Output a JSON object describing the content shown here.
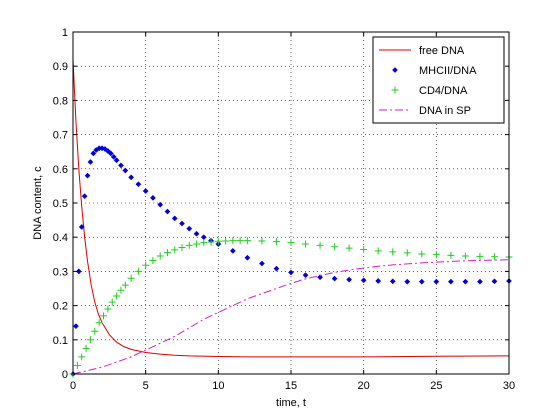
{
  "chart_data": {
    "type": "line",
    "title": "",
    "xlabel": "time, t",
    "ylabel": "DNA content, c",
    "xlim": [
      0,
      30
    ],
    "ylim": [
      0,
      1
    ],
    "xticks": [
      0,
      5,
      10,
      15,
      20,
      25,
      30
    ],
    "yticks": [
      0,
      0.1,
      0.2,
      0.3,
      0.4,
      0.5,
      0.6,
      0.7,
      0.8,
      0.9,
      1
    ],
    "xtick_labels": [
      "0",
      "5",
      "10",
      "15",
      "20",
      "25",
      "30"
    ],
    "ytick_labels": [
      "0",
      "0.1",
      "0.2",
      "0.3",
      "0.4",
      "0.5",
      "0.6",
      "0.7",
      "0.8",
      "0.9",
      "1"
    ],
    "grid": true,
    "legend_position": "top-right",
    "series": [
      {
        "name": "free DNA",
        "style": "solid",
        "marker": "none",
        "color": "#dd0000",
        "x": [
          0,
          0.2,
          0.4,
          0.6,
          0.8,
          1.0,
          1.25,
          1.5,
          1.75,
          2.0,
          2.5,
          3.0,
          3.5,
          4.0,
          5,
          6,
          7,
          8,
          10,
          12,
          15,
          20,
          25,
          30
        ],
        "y": [
          0.92,
          0.74,
          0.6,
          0.49,
          0.4,
          0.33,
          0.26,
          0.21,
          0.175,
          0.15,
          0.115,
          0.093,
          0.08,
          0.072,
          0.063,
          0.058,
          0.055,
          0.053,
          0.051,
          0.05,
          0.05,
          0.05,
          0.052,
          0.053
        ]
      },
      {
        "name": "MHCII/DNA",
        "style": "none",
        "marker": "diamond",
        "color": "#0000dd",
        "x": [
          0,
          0.2,
          0.4,
          0.6,
          0.8,
          1.0,
          1.2,
          1.4,
          1.6,
          1.8,
          2.0,
          2.2,
          2.4,
          2.6,
          2.8,
          3.0,
          3.3,
          3.6,
          4.0,
          4.5,
          5.0,
          5.5,
          6.0,
          6.5,
          7.0,
          7.5,
          8.0,
          8.5,
          9.0,
          9.5,
          10.0,
          11,
          12,
          13,
          14,
          15,
          16,
          17,
          18,
          19,
          20,
          21,
          22,
          23,
          24,
          25,
          26,
          27,
          28,
          29,
          30
        ],
        "y": [
          0.0,
          0.14,
          0.3,
          0.43,
          0.52,
          0.58,
          0.62,
          0.645,
          0.655,
          0.66,
          0.66,
          0.658,
          0.652,
          0.645,
          0.635,
          0.625,
          0.61,
          0.595,
          0.575,
          0.555,
          0.535,
          0.515,
          0.495,
          0.475,
          0.455,
          0.44,
          0.425,
          0.41,
          0.4,
          0.39,
          0.38,
          0.36,
          0.34,
          0.323,
          0.308,
          0.297,
          0.289,
          0.283,
          0.279,
          0.276,
          0.274,
          0.272,
          0.271,
          0.27,
          0.27,
          0.27,
          0.27,
          0.27,
          0.27,
          0.271,
          0.272
        ]
      },
      {
        "name": "CD4/DNA",
        "style": "none",
        "marker": "plus",
        "color": "#22cc22",
        "x": [
          0,
          0.3,
          0.6,
          0.9,
          1.2,
          1.5,
          1.8,
          2.1,
          2.4,
          2.7,
          3.0,
          3.3,
          3.6,
          4.0,
          4.5,
          5.0,
          5.5,
          6.0,
          6.5,
          7.0,
          7.5,
          8.0,
          8.5,
          9.0,
          9.5,
          10.0,
          10.5,
          11,
          11.5,
          12,
          13,
          14,
          15,
          16,
          17,
          18,
          19,
          20,
          21,
          22,
          23,
          24,
          25,
          26,
          27,
          28,
          29,
          30
        ],
        "y": [
          0.0,
          0.025,
          0.05,
          0.075,
          0.1,
          0.125,
          0.15,
          0.17,
          0.19,
          0.21,
          0.228,
          0.245,
          0.26,
          0.28,
          0.3,
          0.318,
          0.332,
          0.345,
          0.355,
          0.363,
          0.37,
          0.376,
          0.38,
          0.384,
          0.386,
          0.388,
          0.389,
          0.39,
          0.39,
          0.39,
          0.389,
          0.387,
          0.384,
          0.38,
          0.376,
          0.372,
          0.368,
          0.364,
          0.36,
          0.357,
          0.354,
          0.351,
          0.349,
          0.347,
          0.345,
          0.344,
          0.343,
          0.342
        ]
      },
      {
        "name": "DNA in SP",
        "style": "dashdot",
        "marker": "none",
        "color": "#cc22cc",
        "x": [
          0,
          1,
          2,
          3,
          4,
          5,
          6,
          7,
          8,
          9,
          10,
          11,
          12,
          13,
          14,
          15,
          16,
          17,
          18,
          19,
          20,
          21,
          22,
          23,
          24,
          25,
          26,
          27,
          28,
          29,
          30
        ],
        "y": [
          0.0,
          0.01,
          0.02,
          0.035,
          0.05,
          0.07,
          0.09,
          0.11,
          0.135,
          0.16,
          0.18,
          0.2,
          0.22,
          0.235,
          0.25,
          0.265,
          0.278,
          0.288,
          0.297,
          0.304,
          0.31,
          0.315,
          0.319,
          0.322,
          0.325,
          0.327,
          0.329,
          0.331,
          0.332,
          0.333,
          0.334
        ]
      }
    ]
  }
}
